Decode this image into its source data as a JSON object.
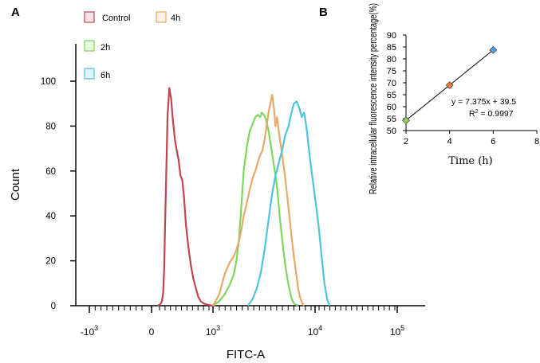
{
  "chart_data": [
    {
      "id": "A",
      "panel_label": "A",
      "type": "line",
      "title": "",
      "xlabel": "FITC-A",
      "ylabel": "Count",
      "xscale": "biexponential (log)",
      "x_ticks": [
        {
          "label": "-10",
          "exp": "3"
        },
        {
          "label": "0",
          "exp": ""
        },
        {
          "label": "10",
          "exp": "3"
        },
        {
          "label": "10",
          "exp": "4"
        },
        {
          "label": "10",
          "exp": "5"
        }
      ],
      "y_ticks": [
        "0",
        "20",
        "40",
        "60",
        "80",
        "100"
      ],
      "ylim": [
        0,
        110
      ],
      "legend_position": "top-left",
      "series": [
        {
          "name": "Control",
          "color": "#c0454f",
          "x": [
            100,
            140,
            170,
            190,
            205,
            220,
            240,
            260,
            290,
            320,
            350,
            380,
            410,
            440,
            470,
            500,
            530,
            560,
            600,
            640,
            680,
            720,
            760,
            800,
            850,
            900,
            950,
            1000,
            1030,
            1060
          ],
          "y": [
            0,
            0.5,
            2,
            6,
            16,
            35,
            60,
            84,
            97,
            92,
            82,
            74,
            69,
            65,
            58,
            56,
            48,
            36,
            26,
            18,
            12,
            8,
            4,
            2,
            1,
            0.5,
            0.2,
            0,
            0,
            0
          ]
        },
        {
          "name": "2h",
          "color": "#7fd65e",
          "x": [
            1000,
            1150,
            1300,
            1450,
            1600,
            1700,
            1800,
            1900,
            2000,
            2150,
            2300,
            2450,
            2600,
            2750,
            2900,
            3000,
            3150,
            3300,
            3500,
            3700,
            3900,
            4100,
            4300,
            4500,
            4800,
            5100,
            5500,
            5900,
            6200,
            6500,
            6800
          ],
          "y": [
            0,
            2,
            5,
            9,
            14,
            20,
            30,
            45,
            60,
            71,
            78,
            81,
            84,
            85,
            84,
            86,
            85,
            83,
            78,
            71,
            64,
            58,
            50,
            40,
            28,
            18,
            9,
            3,
            1,
            0.5,
            0
          ]
        },
        {
          "name": "4h",
          "color": "#e8a86a",
          "x": [
            1000,
            1150,
            1300,
            1450,
            1600,
            1700,
            1800,
            1900,
            2000,
            2150,
            2300,
            2450,
            2600,
            2750,
            2900,
            3050,
            3200,
            3350,
            3500,
            3650,
            3800,
            3950,
            4100,
            4250,
            4400,
            4600,
            4800,
            5000,
            5300,
            5600,
            5900,
            6200,
            6500,
            6800,
            7100,
            7500,
            7800
          ],
          "y": [
            0,
            5,
            14,
            19,
            22,
            25,
            29,
            34,
            40,
            46,
            52,
            57,
            60,
            64,
            67,
            69,
            74,
            80,
            86,
            90,
            94,
            88,
            80,
            84,
            78,
            72,
            66,
            60,
            50,
            40,
            30,
            22,
            15,
            8,
            4,
            1,
            0
          ]
        },
        {
          "name": "6h",
          "color": "#4fc3db",
          "x": [
            2200,
            2450,
            2700,
            2950,
            3200,
            3500,
            3800,
            4100,
            4500,
            4800,
            5100,
            5500,
            5800,
            6200,
            6600,
            7000,
            7400,
            7800,
            8200,
            8600,
            9000,
            9500,
            10000,
            11000,
            12000,
            13000,
            14000,
            15000
          ],
          "y": [
            0,
            3,
            8,
            15,
            25,
            38,
            50,
            58,
            65,
            70,
            76,
            80,
            85,
            90,
            91,
            88,
            84,
            86,
            80,
            72,
            64,
            56,
            48,
            36,
            22,
            10,
            3,
            0
          ]
        }
      ]
    },
    {
      "id": "B",
      "panel_label": "B",
      "type": "scatter",
      "title": "",
      "xlabel": "Time (h)",
      "ylabel": "Relative intracellular fluorescence intensity percentage(%)",
      "xlim": [
        2,
        8
      ],
      "ylim": [
        50,
        90
      ],
      "x_ticks": [
        "2",
        "4",
        "6",
        "8"
      ],
      "y_ticks": [
        "50",
        "55",
        "60",
        "65",
        "70",
        "75",
        "80",
        "85",
        "90"
      ],
      "points": [
        {
          "x": 2,
          "y": 54.25,
          "color": "#92d050"
        },
        {
          "x": 4,
          "y": 69.0,
          "color": "#ed7d31"
        },
        {
          "x": 6,
          "y": 83.75,
          "color": "#4f9fdc"
        }
      ],
      "fit_line": {
        "x": [
          2,
          6
        ],
        "slope": 7.375,
        "intercept": 39.5
      },
      "annotation": {
        "equation": "y = 7.375x + 39.5",
        "r2_label": "R",
        "r2_exp": "2",
        "r2_value": " = 0.9997"
      }
    }
  ]
}
